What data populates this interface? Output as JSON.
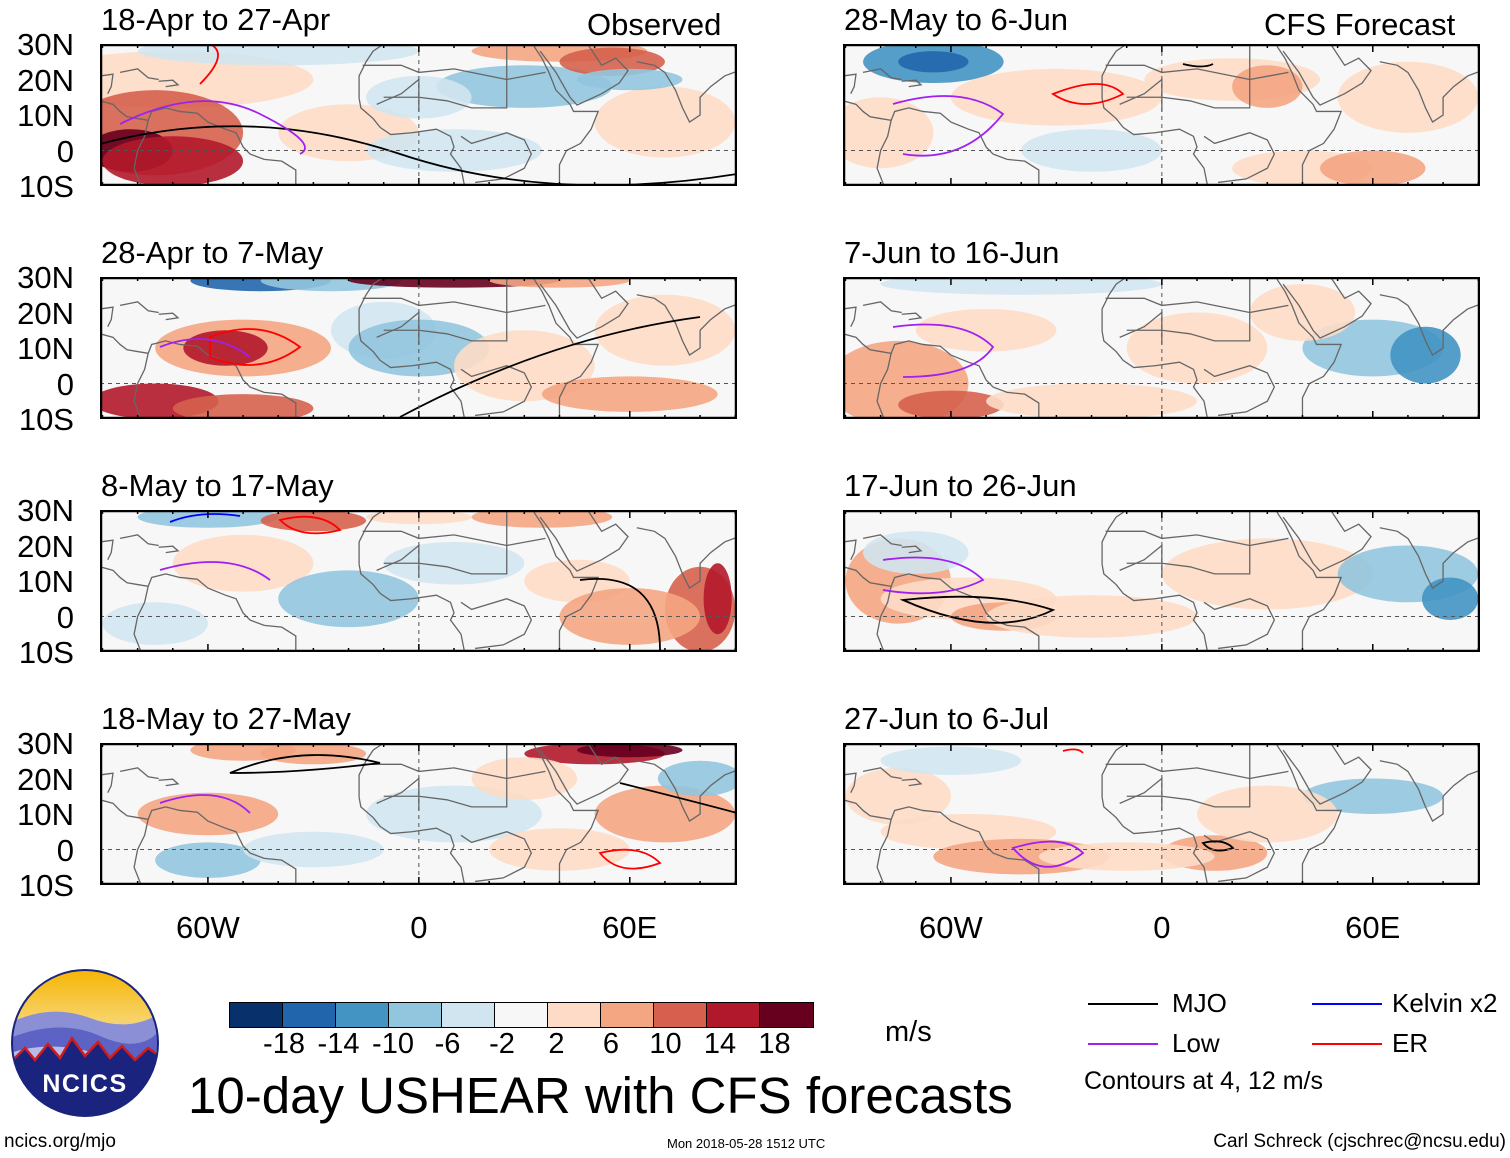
{
  "columns": {
    "left_header": "Observed",
    "right_header": "CFS Forecast"
  },
  "panels": [
    {
      "title": "18-Apr to 27-Apr",
      "column": "left"
    },
    {
      "title": "28-Apr to 7-May",
      "column": "left"
    },
    {
      "title": "8-May to 17-May",
      "column": "left"
    },
    {
      "title": "18-May to 27-May",
      "column": "left"
    },
    {
      "title": "28-May to 6-Jun",
      "column": "right"
    },
    {
      "title": "7-Jun to 16-Jun",
      "column": "right"
    },
    {
      "title": "17-Jun to 26-Jun",
      "column": "right"
    },
    {
      "title": "27-Jun to 6-Jul",
      "column": "right"
    }
  ],
  "lat_labels": [
    "30N",
    "20N",
    "10N",
    "0",
    "10S"
  ],
  "lon_labels": [
    "60W",
    "0",
    "60E"
  ],
  "colorbar": {
    "colors": [
      "#08306b",
      "#2166ac",
      "#4393c3",
      "#92c5de",
      "#d1e5f0",
      "#f7f7f7",
      "#fddbc7",
      "#f4a582",
      "#d6604d",
      "#b2182b",
      "#67001f"
    ],
    "labels": [
      "-18",
      "-14",
      "-10",
      "-6",
      "-2",
      "2",
      "6",
      "10",
      "14",
      "18"
    ],
    "units": "m/s"
  },
  "legend": {
    "items": [
      {
        "label": "MJO",
        "color": "#000000"
      },
      {
        "label": "Kelvin x2",
        "color": "#0000ff"
      },
      {
        "label": "Low",
        "color": "#a020f0"
      },
      {
        "label": "ER",
        "color": "#ff0000"
      }
    ],
    "note": "Contours at 4, 12 m/s"
  },
  "title": "10-day USHEAR with CFS forecasts",
  "logo_text": "NCICS",
  "footer": {
    "url": "ncics.org/mjo",
    "timestamp": "Mon 2018-05-28 1512 UTC",
    "credit": "Carl Schreck (cjschrec@ncsu.edu)"
  }
}
